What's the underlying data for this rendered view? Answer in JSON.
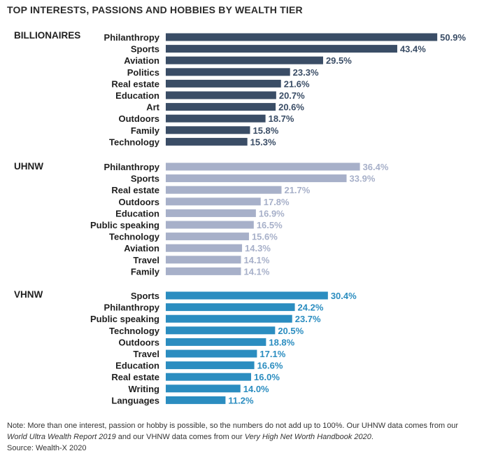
{
  "title": "TOP INTERESTS, PASSIONS AND HOBBIES BY WEALTH TIER",
  "note": {
    "p1": "Note: More than one interest, passion or hobby is possible, so the numbers do not add up to 100%. Our UHNW data comes from our ",
    "i1": "World Ultra Wealth Report 2019",
    "p2": " and our VHNW data comes from our ",
    "i2": "Very High Net Worth Handbook 2020",
    "p3": "."
  },
  "source": "Source: Wealth-X 2020",
  "chart_data": {
    "type": "bar",
    "orientation": "horizontal",
    "unit": "%",
    "groups": [
      {
        "name": "BILLIONAIRES",
        "color": "#3a4d66",
        "label_color": "#3a4d66",
        "categories": [
          "Philanthropy",
          "Sports",
          "Aviation",
          "Politics",
          "Real estate",
          "Education",
          "Art",
          "Outdoors",
          "Family",
          "Technology"
        ],
        "values": [
          50.9,
          43.4,
          29.5,
          23.3,
          21.6,
          20.7,
          20.6,
          18.7,
          15.8,
          15.3
        ]
      },
      {
        "name": "UHNW",
        "color": "#a7b0c9",
        "label_color": "#a7b0c9",
        "categories": [
          "Philanthropy",
          "Sports",
          "Real estate",
          "Outdoors",
          "Education",
          "Public speaking",
          "Technology",
          "Aviation",
          "Travel",
          "Family"
        ],
        "values": [
          36.4,
          33.9,
          21.7,
          17.8,
          16.9,
          16.5,
          15.6,
          14.3,
          14.1,
          14.1
        ]
      },
      {
        "name": "VHNW",
        "color": "#2b8dc0",
        "label_color": "#2b8dc0",
        "categories": [
          "Sports",
          "Philanthropy",
          "Public speaking",
          "Technology",
          "Outdoors",
          "Travel",
          "Education",
          "Real estate",
          "Writing",
          "Languages"
        ],
        "values": [
          30.4,
          24.2,
          23.7,
          20.5,
          18.8,
          17.1,
          16.6,
          16.0,
          14.0,
          11.2
        ]
      }
    ]
  }
}
